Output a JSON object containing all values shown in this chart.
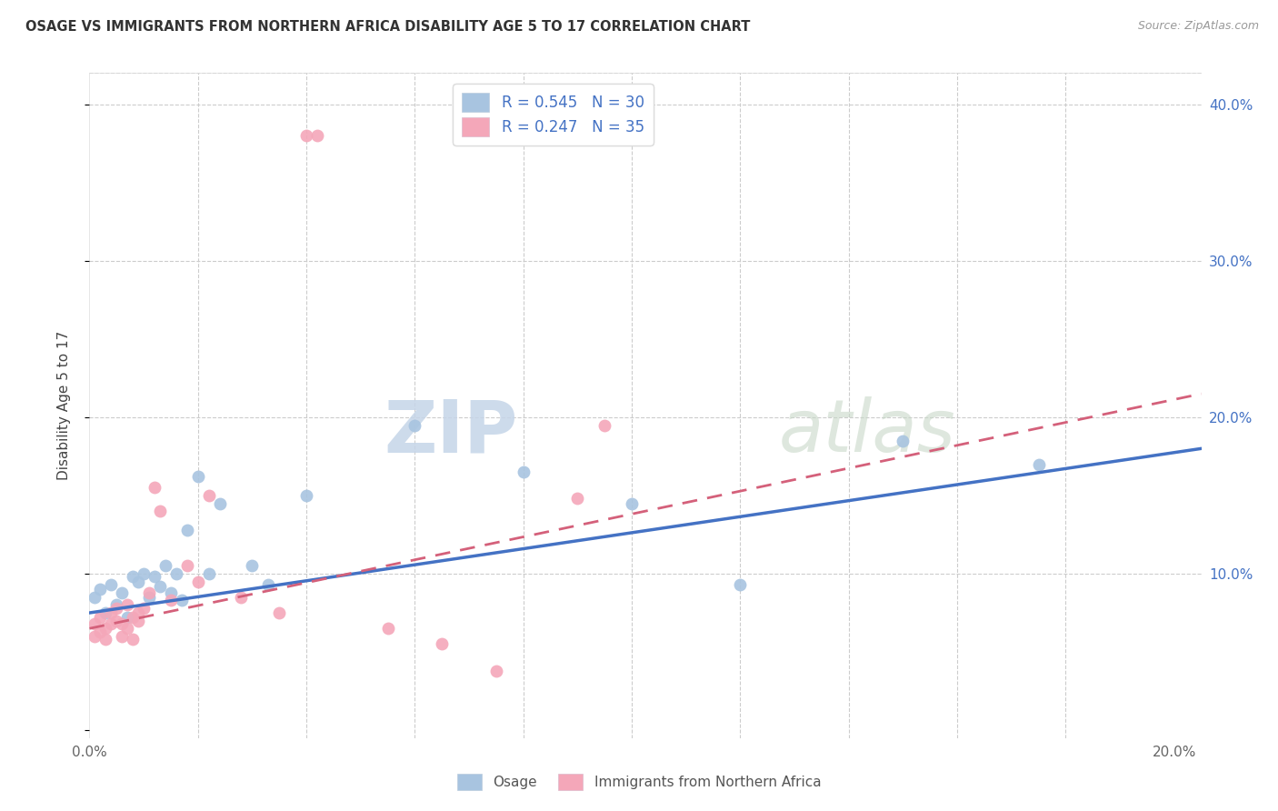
{
  "title": "OSAGE VS IMMIGRANTS FROM NORTHERN AFRICA DISABILITY AGE 5 TO 17 CORRELATION CHART",
  "source": "Source: ZipAtlas.com",
  "ylabel": "Disability Age 5 to 17",
  "xlim": [
    0.0,
    0.205
  ],
  "ylim": [
    -0.005,
    0.42
  ],
  "series1_name": "Osage",
  "series2_name": "Immigrants from Northern Africa",
  "series1_color": "#a8c4e0",
  "series2_color": "#f4a7b9",
  "series1_line_color": "#4472c4",
  "series2_line_color": "#d4607a",
  "watermark_zip": "ZIP",
  "watermark_atlas": "atlas",
  "R1": 0.545,
  "N1": 30,
  "R2": 0.247,
  "N2": 35,
  "osage_x": [
    0.001,
    0.002,
    0.003,
    0.004,
    0.005,
    0.006,
    0.007,
    0.008,
    0.009,
    0.01,
    0.011,
    0.012,
    0.013,
    0.014,
    0.015,
    0.016,
    0.017,
    0.018,
    0.02,
    0.022,
    0.024,
    0.03,
    0.033,
    0.04,
    0.06,
    0.08,
    0.1,
    0.12,
    0.15,
    0.175
  ],
  "osage_y": [
    0.085,
    0.09,
    0.075,
    0.093,
    0.08,
    0.088,
    0.072,
    0.098,
    0.095,
    0.1,
    0.085,
    0.098,
    0.092,
    0.105,
    0.088,
    0.1,
    0.083,
    0.128,
    0.162,
    0.1,
    0.145,
    0.105,
    0.093,
    0.15,
    0.195,
    0.165,
    0.145,
    0.093,
    0.185,
    0.17
  ],
  "immigrants_x": [
    0.001,
    0.001,
    0.002,
    0.002,
    0.003,
    0.003,
    0.004,
    0.004,
    0.005,
    0.005,
    0.006,
    0.006,
    0.007,
    0.007,
    0.008,
    0.008,
    0.009,
    0.009,
    0.01,
    0.011,
    0.012,
    0.013,
    0.015,
    0.018,
    0.02,
    0.022,
    0.028,
    0.035,
    0.04,
    0.042,
    0.055,
    0.065,
    0.075,
    0.09,
    0.095
  ],
  "immigrants_y": [
    0.068,
    0.06,
    0.063,
    0.072,
    0.058,
    0.065,
    0.075,
    0.068,
    0.07,
    0.078,
    0.068,
    0.06,
    0.08,
    0.065,
    0.072,
    0.058,
    0.075,
    0.07,
    0.078,
    0.088,
    0.155,
    0.14,
    0.083,
    0.105,
    0.095,
    0.15,
    0.085,
    0.075,
    0.38,
    0.38,
    0.065,
    0.055,
    0.038,
    0.148,
    0.195
  ],
  "line1_x0": 0.0,
  "line1_y0": 0.075,
  "line1_x1": 0.205,
  "line1_y1": 0.18,
  "line2_x0": 0.0,
  "line2_y0": 0.065,
  "line2_x1": 0.205,
  "line2_y1": 0.215
}
